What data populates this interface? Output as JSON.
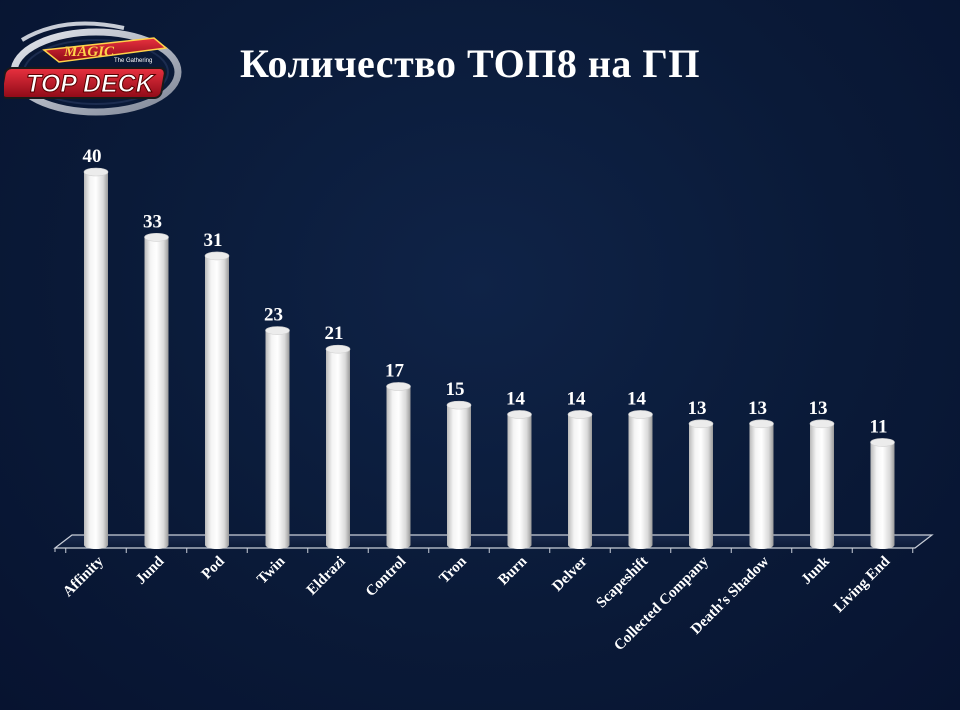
{
  "header": {
    "title": "Количество ТОП8 на ГП",
    "logo": {
      "top_text": "MAGIC",
      "sub_text": "The Gathering",
      "main_text": "TOP DECK"
    }
  },
  "colors": {
    "background": "#0a1a38",
    "bar": "#ffffff",
    "text": "#ffffff",
    "logo_red": "#c8102e"
  },
  "chart_data": {
    "type": "bar",
    "title": "Количество ТОП8 на ГП",
    "categories": [
      "Affinity",
      "Jund",
      "Pod",
      "Twin",
      "Eldrazi",
      "Control",
      "Tron",
      "Burn",
      "Delver",
      "Scapeshift",
      "Collected Company",
      "Death’s Shadow",
      "Junk",
      "Living End"
    ],
    "values": [
      40,
      33,
      31,
      23,
      21,
      17,
      15,
      14,
      14,
      14,
      13,
      13,
      13,
      11
    ],
    "xlabel": "",
    "ylabel": "",
    "ylim": [
      0,
      40
    ],
    "grid": false,
    "legend": "none",
    "style": "3d-cylinder"
  }
}
